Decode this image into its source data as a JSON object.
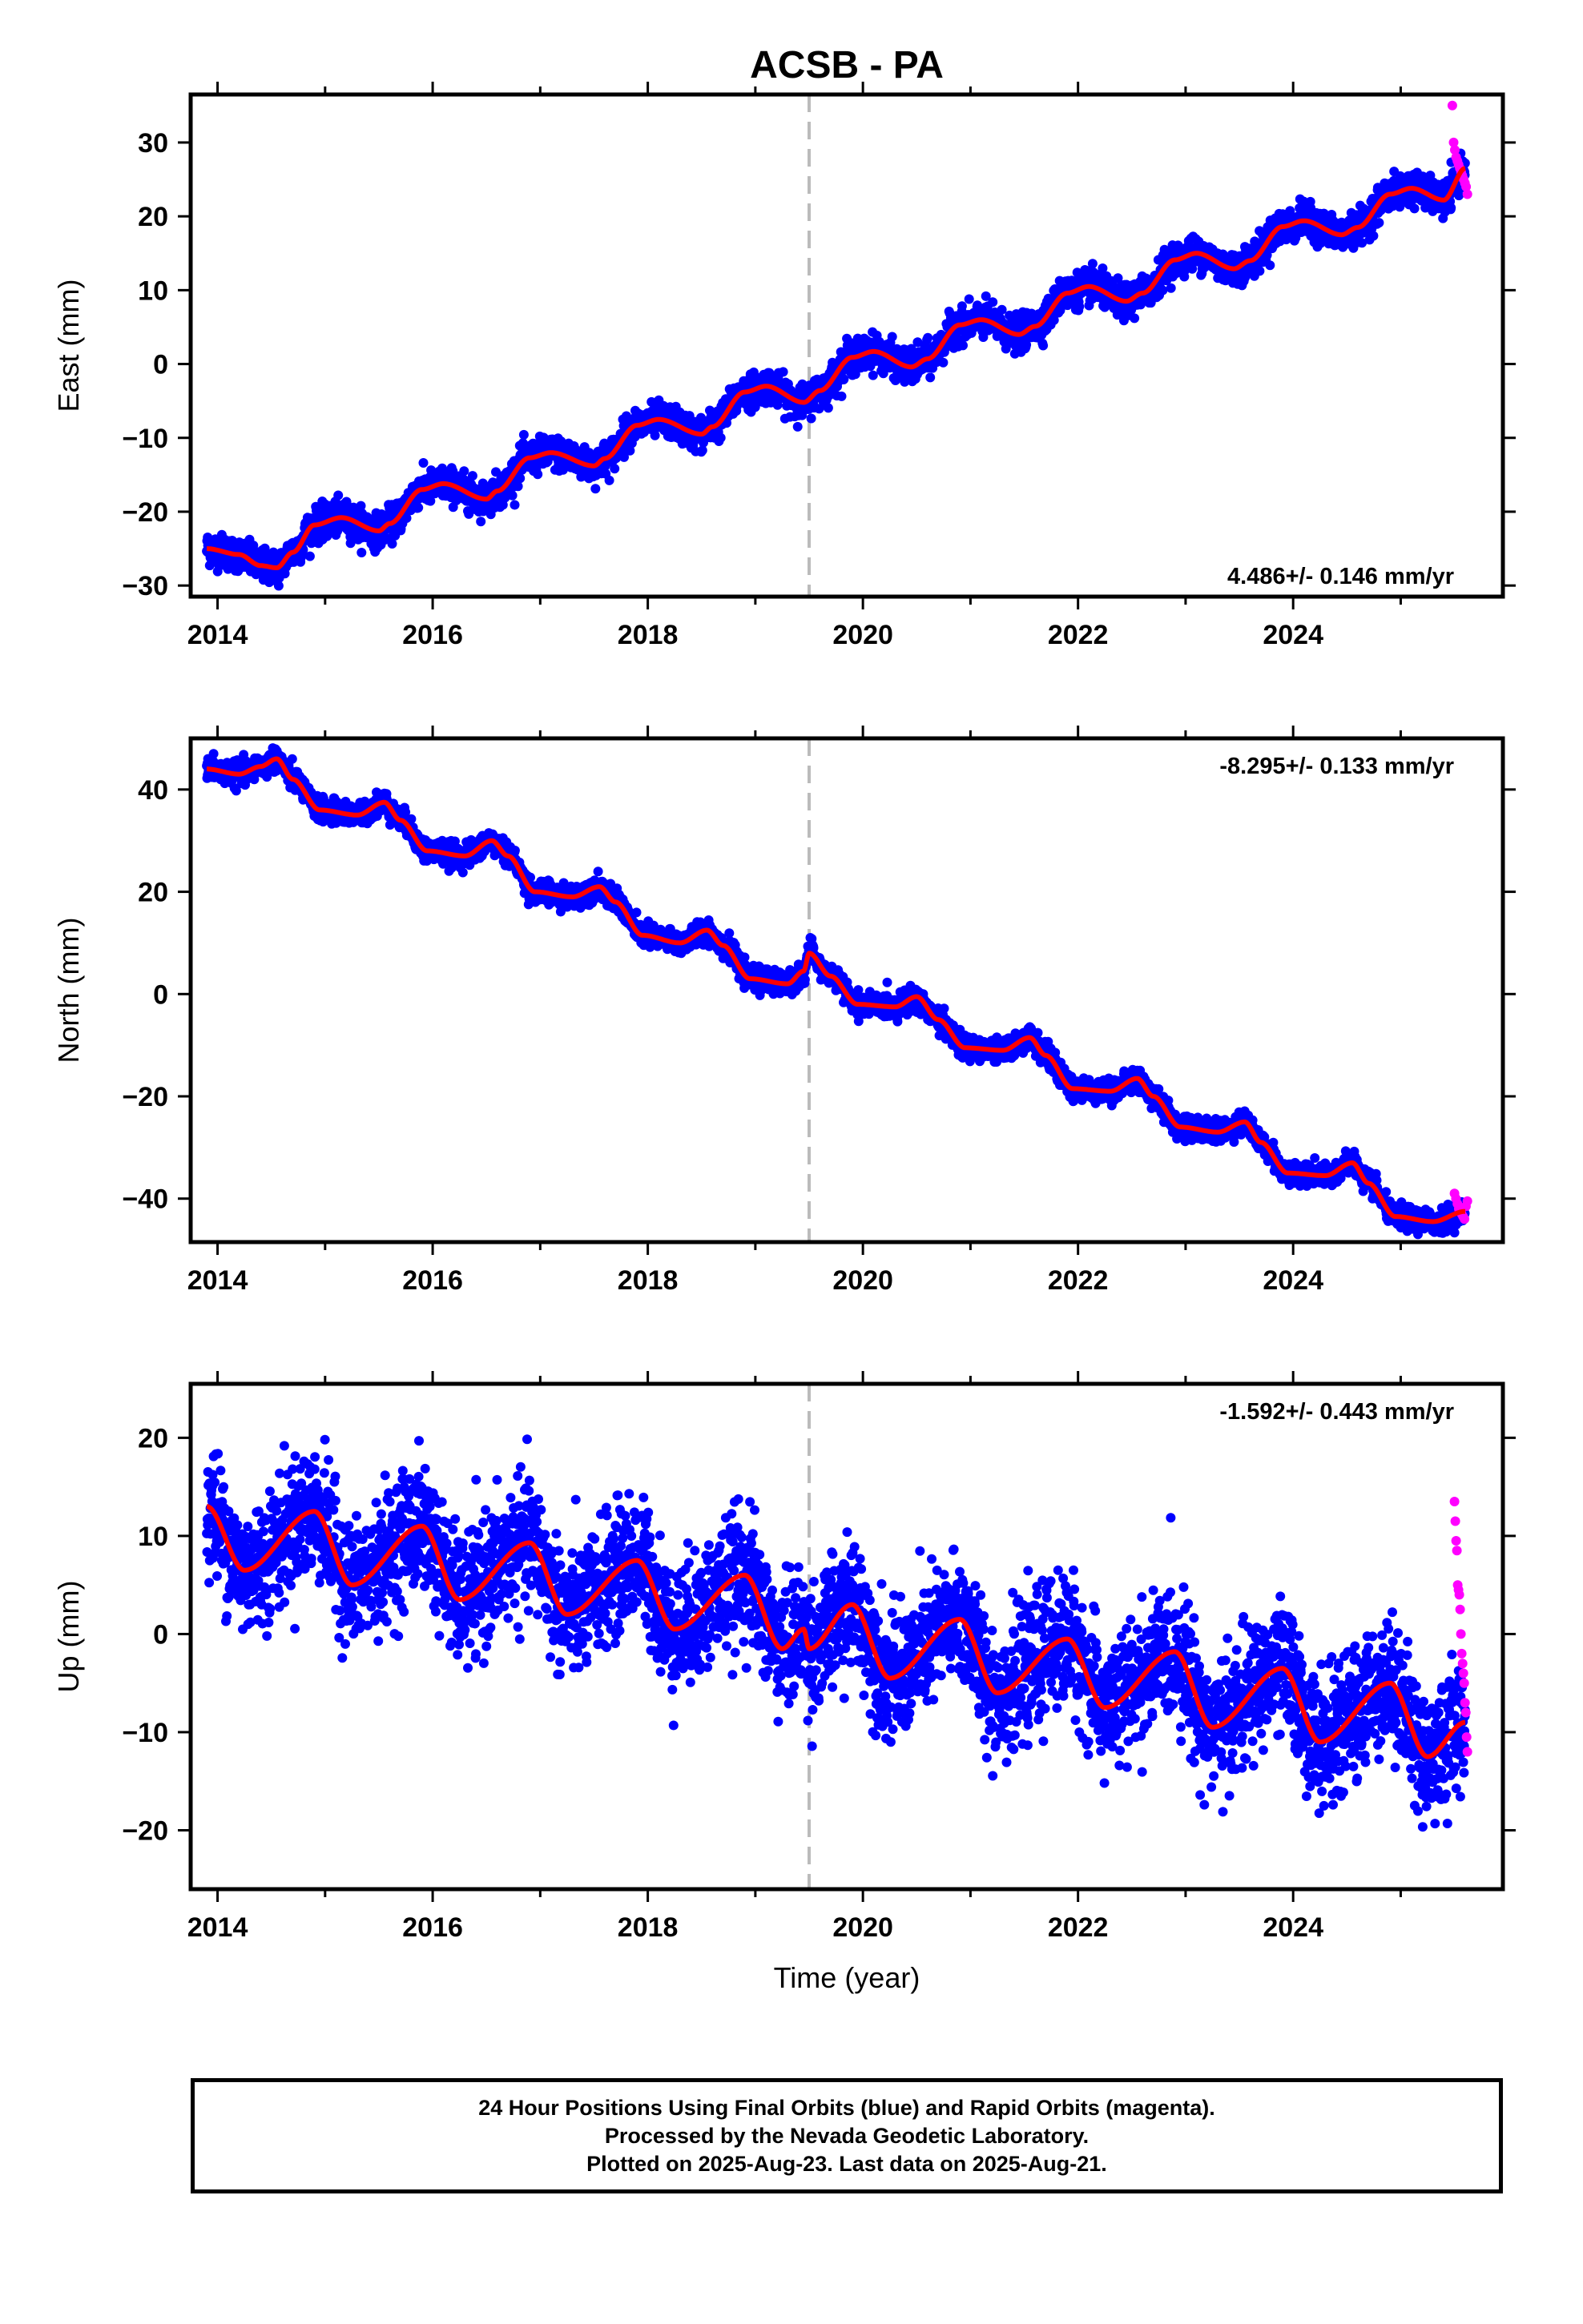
{
  "chart_data": {
    "type": "scatter",
    "title": "ACSB - PA",
    "xlabel": "Time (year)",
    "x_tick_labels": [
      "2014",
      "2016",
      "2018",
      "2020",
      "2022",
      "2024"
    ],
    "xlim": [
      2013.75,
      2025.95
    ],
    "marker_year": 2019.5,
    "colors": {
      "final": "#0000ff",
      "rapid": "#ff00ff",
      "model": "#ff0000",
      "marker": "#bbbbbb"
    },
    "panels": [
      {
        "component": "East",
        "ylabel": "East (mm)",
        "ylim": [
          -31.5,
          36.5
        ],
        "yticks": [
          -30,
          -20,
          -10,
          0,
          10,
          20,
          30
        ],
        "rate_label": "4.486+/- 0.146 mm/yr",
        "rate_position": "bottom-right",
        "model_points": [
          [
            2013.9,
            -25
          ],
          [
            2014.2,
            -25.8
          ],
          [
            2014.4,
            -27.3
          ],
          [
            2014.55,
            -27.6
          ],
          [
            2014.7,
            -25.5
          ],
          [
            2014.9,
            -21.8
          ],
          [
            2015.15,
            -20.8
          ],
          [
            2015.5,
            -22.6
          ],
          [
            2015.6,
            -21.6
          ],
          [
            2015.9,
            -17
          ],
          [
            2016.1,
            -16.2
          ],
          [
            2016.5,
            -18.3
          ],
          [
            2016.6,
            -17.2
          ],
          [
            2016.9,
            -12.7
          ],
          [
            2017.1,
            -12
          ],
          [
            2017.5,
            -13.8
          ],
          [
            2017.6,
            -12.8
          ],
          [
            2017.9,
            -8.3
          ],
          [
            2018.1,
            -7.5
          ],
          [
            2018.5,
            -9.5
          ],
          [
            2018.6,
            -8.5
          ],
          [
            2018.9,
            -3.8
          ],
          [
            2019.1,
            -3
          ],
          [
            2019.45,
            -5.2
          ],
          [
            2019.6,
            -3.6
          ],
          [
            2019.9,
            0.9
          ],
          [
            2020.1,
            1.7
          ],
          [
            2020.45,
            -0.4
          ],
          [
            2020.6,
            0.7
          ],
          [
            2020.9,
            5.3
          ],
          [
            2021.1,
            6
          ],
          [
            2021.45,
            4
          ],
          [
            2021.6,
            5.1
          ],
          [
            2021.9,
            9.6
          ],
          [
            2022.1,
            10.5
          ],
          [
            2022.45,
            8.5
          ],
          [
            2022.6,
            9.6
          ],
          [
            2022.9,
            14.1
          ],
          [
            2023.1,
            15
          ],
          [
            2023.45,
            12.9
          ],
          [
            2023.6,
            14
          ],
          [
            2023.9,
            18.6
          ],
          [
            2024.1,
            19.4
          ],
          [
            2024.45,
            17.5
          ],
          [
            2024.6,
            18.5
          ],
          [
            2024.9,
            23
          ],
          [
            2025.1,
            23.8
          ],
          [
            2025.4,
            22.2
          ],
          [
            2025.6,
            26.5
          ]
        ],
        "final_noise": 1.1,
        "rapid": {
          "x_start": 2025.48,
          "x_end": 2025.62,
          "y": [
            35,
            30,
            29,
            28,
            27.5,
            27,
            26.5,
            26,
            25.5,
            25,
            24.5,
            24,
            23
          ]
        }
      },
      {
        "component": "North",
        "ylabel": "North (mm)",
        "ylim": [
          -48.5,
          50
        ],
        "yticks": [
          -40,
          -20,
          0,
          20,
          40
        ],
        "rate_label": "-8.295+/- 0.133 mm/yr",
        "rate_position": "top-right",
        "model_points": [
          [
            2013.9,
            44
          ],
          [
            2014.2,
            43
          ],
          [
            2014.4,
            44.5
          ],
          [
            2014.55,
            46
          ],
          [
            2014.7,
            42
          ],
          [
            2014.95,
            36
          ],
          [
            2015.3,
            35
          ],
          [
            2015.55,
            37.5
          ],
          [
            2015.7,
            34
          ],
          [
            2015.95,
            28
          ],
          [
            2016.3,
            27
          ],
          [
            2016.55,
            30
          ],
          [
            2016.7,
            27
          ],
          [
            2016.95,
            20
          ],
          [
            2017.3,
            19
          ],
          [
            2017.55,
            21
          ],
          [
            2017.7,
            18
          ],
          [
            2017.95,
            11.5
          ],
          [
            2018.3,
            10
          ],
          [
            2018.55,
            12.5
          ],
          [
            2018.7,
            9.5
          ],
          [
            2018.95,
            3
          ],
          [
            2019.3,
            2
          ],
          [
            2019.45,
            4.5
          ],
          [
            2019.5,
            8
          ],
          [
            2019.7,
            3.5
          ],
          [
            2019.95,
            -2
          ],
          [
            2020.3,
            -2.5
          ],
          [
            2020.5,
            -0.5
          ],
          [
            2020.7,
            -5
          ],
          [
            2020.95,
            -10.5
          ],
          [
            2021.3,
            -11
          ],
          [
            2021.55,
            -8.5
          ],
          [
            2021.7,
            -12
          ],
          [
            2021.95,
            -18.5
          ],
          [
            2022.3,
            -19
          ],
          [
            2022.55,
            -16.5
          ],
          [
            2022.7,
            -20
          ],
          [
            2022.95,
            -26
          ],
          [
            2023.3,
            -27
          ],
          [
            2023.55,
            -25
          ],
          [
            2023.7,
            -29
          ],
          [
            2023.95,
            -35
          ],
          [
            2024.3,
            -35.5
          ],
          [
            2024.55,
            -33
          ],
          [
            2024.7,
            -37
          ],
          [
            2024.95,
            -43.5
          ],
          [
            2025.3,
            -44.5
          ],
          [
            2025.6,
            -42.5
          ]
        ],
        "final_noise": 1.1,
        "rapid": {
          "x_start": 2025.5,
          "x_end": 2025.62,
          "y": [
            -39,
            -40,
            -41,
            -42,
            -42.5,
            -43,
            -43.5,
            -44,
            -41.5,
            -40.5
          ]
        }
      },
      {
        "component": "Up",
        "ylabel": "Up (mm)",
        "ylim": [
          -26,
          25.5
        ],
        "yticks": [
          -20,
          -10,
          0,
          10,
          20
        ],
        "rate_label": "-1.592+/- 0.443 mm/yr",
        "rate_position": "top-right",
        "model_points": [
          [
            2013.9,
            13
          ],
          [
            2014.25,
            6.5
          ],
          [
            2014.9,
            12.5
          ],
          [
            2015.25,
            5
          ],
          [
            2015.9,
            11
          ],
          [
            2016.25,
            3.5
          ],
          [
            2016.9,
            9.3
          ],
          [
            2017.25,
            2
          ],
          [
            2017.9,
            7.5
          ],
          [
            2018.25,
            0.5
          ],
          [
            2018.9,
            6
          ],
          [
            2019.25,
            -1.5
          ],
          [
            2019.45,
            0.5
          ],
          [
            2019.5,
            -1.5
          ],
          [
            2019.9,
            3
          ],
          [
            2020.25,
            -4.5
          ],
          [
            2020.9,
            1.5
          ],
          [
            2021.25,
            -6
          ],
          [
            2021.9,
            -0.5
          ],
          [
            2022.25,
            -7.5
          ],
          [
            2022.9,
            -1.8
          ],
          [
            2023.25,
            -9.5
          ],
          [
            2023.9,
            -3.5
          ],
          [
            2024.25,
            -11
          ],
          [
            2024.9,
            -5
          ],
          [
            2025.25,
            -12.5
          ],
          [
            2025.6,
            -9
          ]
        ],
        "final_noise": 3.2,
        "rapid": {
          "x_start": 2025.5,
          "x_end": 2025.62,
          "y": [
            13.5,
            11.5,
            9.5,
            8.5,
            5,
            4.5,
            4,
            2.5,
            0,
            -2,
            -3,
            -4,
            -5,
            -7,
            -8,
            -10.5,
            -12
          ]
        }
      }
    ]
  },
  "caption": {
    "line1": "24 Hour Positions Using Final Orbits (blue) and Rapid Orbits (magenta).",
    "line2": "Processed by the Nevada Geodetic Laboratory.",
    "line3": "Plotted on 2025-Aug-23. Last data on 2025-Aug-21."
  }
}
